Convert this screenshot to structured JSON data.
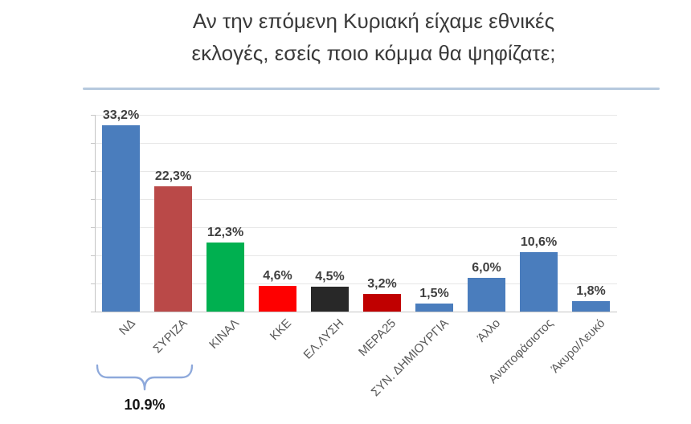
{
  "title": {
    "full": "Αν την επόμενη Κυριακή είχαμε εθνικές εκλογές, εσείς ποιο κόμμα θα ψηφίζατε;",
    "lines": [
      "Αν την επόμενη Κυριακή είχαμε εθνικές",
      "εκλογές, εσείς ποιο κόμμα θα ψηφίζατε;"
    ]
  },
  "chart_data": {
    "type": "bar",
    "title": "Αν την επόμενη Κυριακή είχαμε εθνικές εκλογές, εσείς ποιο κόμμα θα ψηφίζατε;",
    "categories": [
      "ΝΔ",
      "ΣΥΡΙΖΑ",
      "ΚΙΝΑΛ",
      "ΚΚΕ",
      "ΕΛ.ΛΥΣΗ",
      "ΜΕΡΑ25",
      "ΣΥΝ. ΔΗΜΙΟΥΡΓΙΑ",
      "Άλλο",
      "Αναποφάσιστος",
      "Άκυρο/Λευκό"
    ],
    "values": [
      33.2,
      22.3,
      12.3,
      4.6,
      4.5,
      3.2,
      1.5,
      6.0,
      10.6,
      1.8
    ],
    "value_labels": [
      "33,2%",
      "22,3%",
      "12,3%",
      "4,6%",
      "4,5%",
      "3,2%",
      "1,5%",
      "6,0%",
      "10,6%",
      "1,8%"
    ],
    "bar_colors": [
      "#4a7dbd",
      "#ba4948",
      "#00b050",
      "#fe0000",
      "#282828",
      "#c00000",
      "#4a7dbd",
      "#4a7dbd",
      "#4a7dbd",
      "#4a7dbd"
    ],
    "xlabel": "",
    "ylabel": "",
    "ylim": [
      0,
      35
    ],
    "grid_step": 5,
    "grid": true,
    "legend": false,
    "x_tick_rotation_deg": 45,
    "annotation": {
      "label": "10.9%",
      "spans_categories": [
        "ΝΔ",
        "ΣΥΡΙΖΑ"
      ],
      "span_indices": [
        0,
        1
      ]
    }
  },
  "colors": {
    "background": "#ffffff",
    "divider": "#b6c9de",
    "gridline": "#e7e7e7",
    "axis": "#c6c6c6",
    "title_text": "#3a3a3a",
    "value_label_text": "#3f3f3f",
    "category_label_text": "#595959",
    "brace": "#8ea9db",
    "annotation_label_text": "#141414"
  }
}
